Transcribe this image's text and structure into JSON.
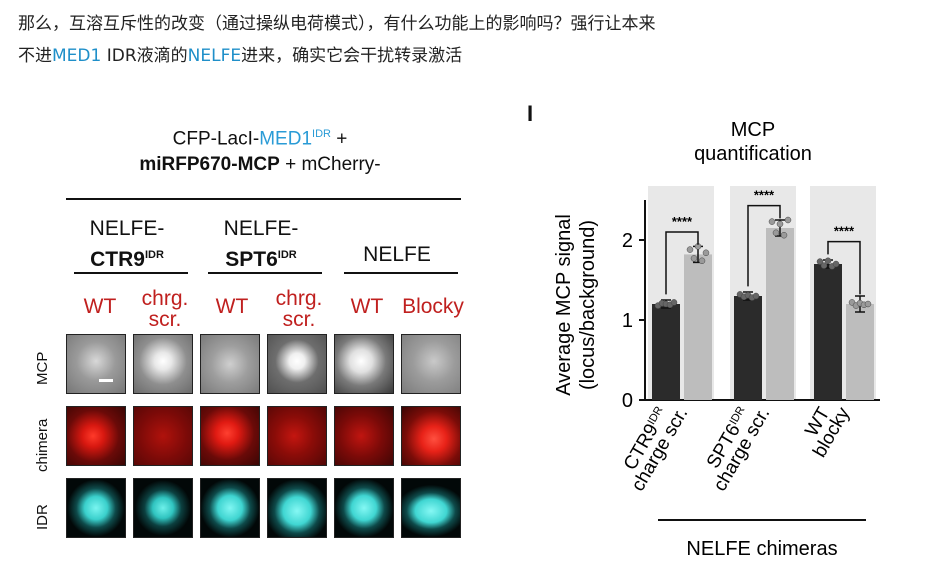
{
  "intro": {
    "line1": "那么，互溶互斥性的改变（通过操纵电荷模式），有什么功能上的影响吗？强行让本来",
    "line2_a": "不进",
    "line2_b": "MED1",
    "line2_c": " IDR液滴的",
    "line2_d": "NELFE",
    "line2_e": "进来，确实它会干扰转录激活"
  },
  "left_panel": {
    "header1_a": "CFP-LacI-",
    "header1_b": "MED1",
    "header1_sup": "IDR",
    "header1_c": " +",
    "header2_a": "miRFP670-MCP",
    "header2_b": " + mCherry-",
    "groups": [
      {
        "line1": "NELFE-",
        "line2": "CTR9",
        "sup": "IDR"
      },
      {
        "line1": "NELFE-",
        "line2": "SPT6",
        "sup": "IDR"
      },
      {
        "line1": "NELFE",
        "line2": "",
        "sup": ""
      }
    ],
    "conditions": [
      "WT",
      "chrg. scr.",
      "WT",
      "chrg. scr.",
      "WT",
      "Blocky"
    ],
    "rows": [
      "MCP",
      "chimera",
      "IDR"
    ]
  },
  "panel_label": "I",
  "chart_data": {
    "type": "bar",
    "title": "MCP quantification",
    "ylabel": "Average MCP signal (locus/background)",
    "xlabel": "NELFE chimeras",
    "ylim": [
      0,
      2.5
    ],
    "yticks": [
      0,
      1,
      2
    ],
    "groups": [
      {
        "label": "CTR9 IDR",
        "sup": "IDR",
        "name": "CTR9",
        "bars": [
          {
            "label": "",
            "value": 1.2,
            "color": "#2b2b2b"
          },
          {
            "label": "charge scr.",
            "value": 1.82,
            "color": "#bdbdbd"
          }
        ],
        "significance": "****"
      },
      {
        "label": "SPT6 IDR",
        "sup": "IDR",
        "name": "SPT6",
        "bars": [
          {
            "label": "",
            "value": 1.3,
            "color": "#2b2b2b"
          },
          {
            "label": "charge scr.",
            "value": 2.15,
            "color": "#bdbdbd"
          }
        ],
        "significance": "****"
      },
      {
        "label": "WT",
        "name": "WT",
        "bars": [
          {
            "label": "WT",
            "value": 1.7,
            "color": "#2b2b2b"
          },
          {
            "label": "blocky",
            "value": 1.2,
            "color": "#bdbdbd"
          }
        ],
        "significance": "****"
      }
    ],
    "xtick_labels": [
      "CTR9IDR",
      "charge scr.",
      "SPT6IDR",
      "charge scr.",
      "WT",
      "blocky"
    ]
  }
}
